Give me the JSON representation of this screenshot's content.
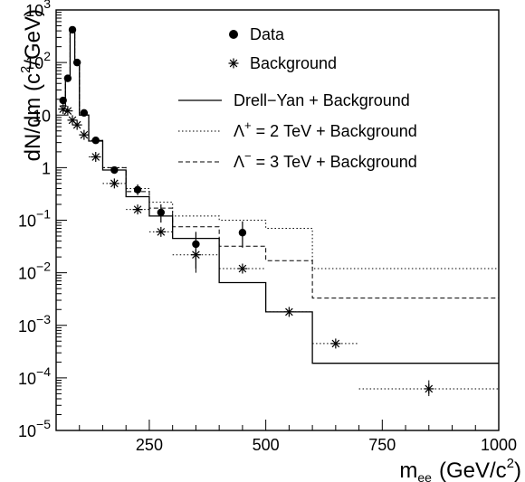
{
  "chart_data": {
    "type": "line",
    "title": "",
    "xlabel": "m_ee (GeV/c²)",
    "xlabel_main": "m",
    "xlabel_sub": "ee",
    "xlabel_unit": "(GeV/c",
    "xlabel_unit_sup": "2",
    "xlabel_unit_close": ")",
    "ylabel": "dN/dm (c²/GeV)",
    "ylabel_main": "dN/dm (c",
    "ylabel_sup": "2",
    "ylabel_close": "/GeV)",
    "xlim": [
      50,
      1000
    ],
    "ylim": [
      1e-05,
      1000
    ],
    "yscale": "log",
    "grid": false,
    "legend_position": "top-right",
    "x_ticks": [
      {
        "value": 250,
        "label": "250"
      },
      {
        "value": 500,
        "label": "500"
      },
      {
        "value": 750,
        "label": "750"
      },
      {
        "value": 1000,
        "label": "1000"
      }
    ],
    "y_ticks": [
      {
        "value": 1000,
        "base": "10",
        "exp": "3"
      },
      {
        "value": 100,
        "base": "10",
        "exp": "2"
      },
      {
        "value": 10,
        "base": "10",
        "exp": ""
      },
      {
        "value": 1,
        "base": "1",
        "exp": ""
      },
      {
        "value": 0.1,
        "base": "10",
        "exp": "−1"
      },
      {
        "value": 0.01,
        "base": "10",
        "exp": "−2"
      },
      {
        "value": 0.001,
        "base": "10",
        "exp": "−3"
      },
      {
        "value": 0.0001,
        "base": "10",
        "exp": "−4"
      },
      {
        "value": 1e-05,
        "base": "10",
        "exp": "−5"
      }
    ],
    "legend": [
      {
        "label": "Data",
        "marker": "dot"
      },
      {
        "label": "Background",
        "marker": "star"
      },
      {
        "label": "Drell−Yan + Background",
        "line": "solid"
      },
      {
        "label_prefix": "Λ",
        "label_sup": "+",
        "label_rest": " = 2 TeV + Background",
        "line": "dotted"
      },
      {
        "label_prefix": "Λ",
        "label_sup": "−",
        "label_rest": " = 3 TeV + Background",
        "line": "dashed"
      }
    ],
    "bin_edges": [
      60,
      70,
      80,
      90,
      100,
      120,
      150,
      200,
      250,
      300,
      400,
      500,
      600,
      1000
    ],
    "series": [
      {
        "name": "Drell−Yan + Background",
        "style": "solid",
        "values": [
          15,
          50,
          420,
          95,
          10,
          3.2,
          0.9,
          0.28,
          0.12,
          0.045,
          0.0065,
          0.0018,
          0.00019
        ]
      },
      {
        "name": "Λ⁺ = 2 TeV + Background",
        "style": "dotted",
        "values": [
          15,
          50,
          420,
          95,
          10,
          3.3,
          1.0,
          0.4,
          0.22,
          0.12,
          0.1,
          0.07,
          0.012
        ]
      },
      {
        "name": "Λ⁻ = 3 TeV + Background",
        "style": "dashed",
        "values": [
          15,
          50,
          420,
          95,
          10,
          3.3,
          1.0,
          0.35,
          0.17,
          0.075,
          0.032,
          0.017,
          0.0033
        ]
      },
      {
        "name": "Data",
        "marker": "dot",
        "points": [
          {
            "x": 65,
            "y": 19
          },
          {
            "x": 75,
            "y": 50
          },
          {
            "x": 85,
            "y": 420
          },
          {
            "x": 95,
            "y": 100
          },
          {
            "x": 110,
            "y": 11
          },
          {
            "x": 135,
            "y": 3.3
          },
          {
            "x": 175,
            "y": 0.9
          },
          {
            "x": 225,
            "y": 0.38,
            "err_lo": 0.3,
            "err_hi": 0.48
          },
          {
            "x": 275,
            "y": 0.14,
            "err_lo": 0.09,
            "err_hi": 0.2
          },
          {
            "x": 350,
            "y": 0.035,
            "err_lo": 0.012,
            "err_hi": 0.06
          },
          {
            "x": 450,
            "y": 0.058,
            "err_lo": 0.03,
            "err_hi": 0.095
          }
        ]
      },
      {
        "name": "Background",
        "marker": "star",
        "points": [
          {
            "x": 65,
            "y": 13,
            "x_lo": 60,
            "x_hi": 70
          },
          {
            "x": 75,
            "y": 12,
            "x_lo": 70,
            "x_hi": 80
          },
          {
            "x": 85,
            "y": 8,
            "x_lo": 80,
            "x_hi": 90
          },
          {
            "x": 95,
            "y": 6.5,
            "x_lo": 90,
            "x_hi": 100
          },
          {
            "x": 110,
            "y": 4.2,
            "x_lo": 100,
            "x_hi": 120
          },
          {
            "x": 135,
            "y": 1.6,
            "x_lo": 120,
            "x_hi": 150
          },
          {
            "x": 175,
            "y": 0.5,
            "x_lo": 150,
            "x_hi": 200
          },
          {
            "x": 225,
            "y": 0.16,
            "x_lo": 200,
            "x_hi": 250
          },
          {
            "x": 275,
            "y": 0.06,
            "x_lo": 250,
            "x_hi": 300
          },
          {
            "x": 350,
            "y": 0.022,
            "x_lo": 300,
            "x_hi": 400,
            "err_lo": 0.01,
            "err_hi": 0.04
          },
          {
            "x": 450,
            "y": 0.012,
            "x_lo": 400,
            "x_hi": 500
          },
          {
            "x": 550,
            "y": 0.0018,
            "x_lo": 500,
            "x_hi": 600
          },
          {
            "x": 650,
            "y": 0.00045,
            "x_lo": 600,
            "x_hi": 700
          },
          {
            "x": 850,
            "y": 6.2e-05,
            "x_lo": 700,
            "x_hi": 1000,
            "err_lo": 4.5e-05,
            "err_hi": 9e-05
          }
        ]
      }
    ]
  }
}
